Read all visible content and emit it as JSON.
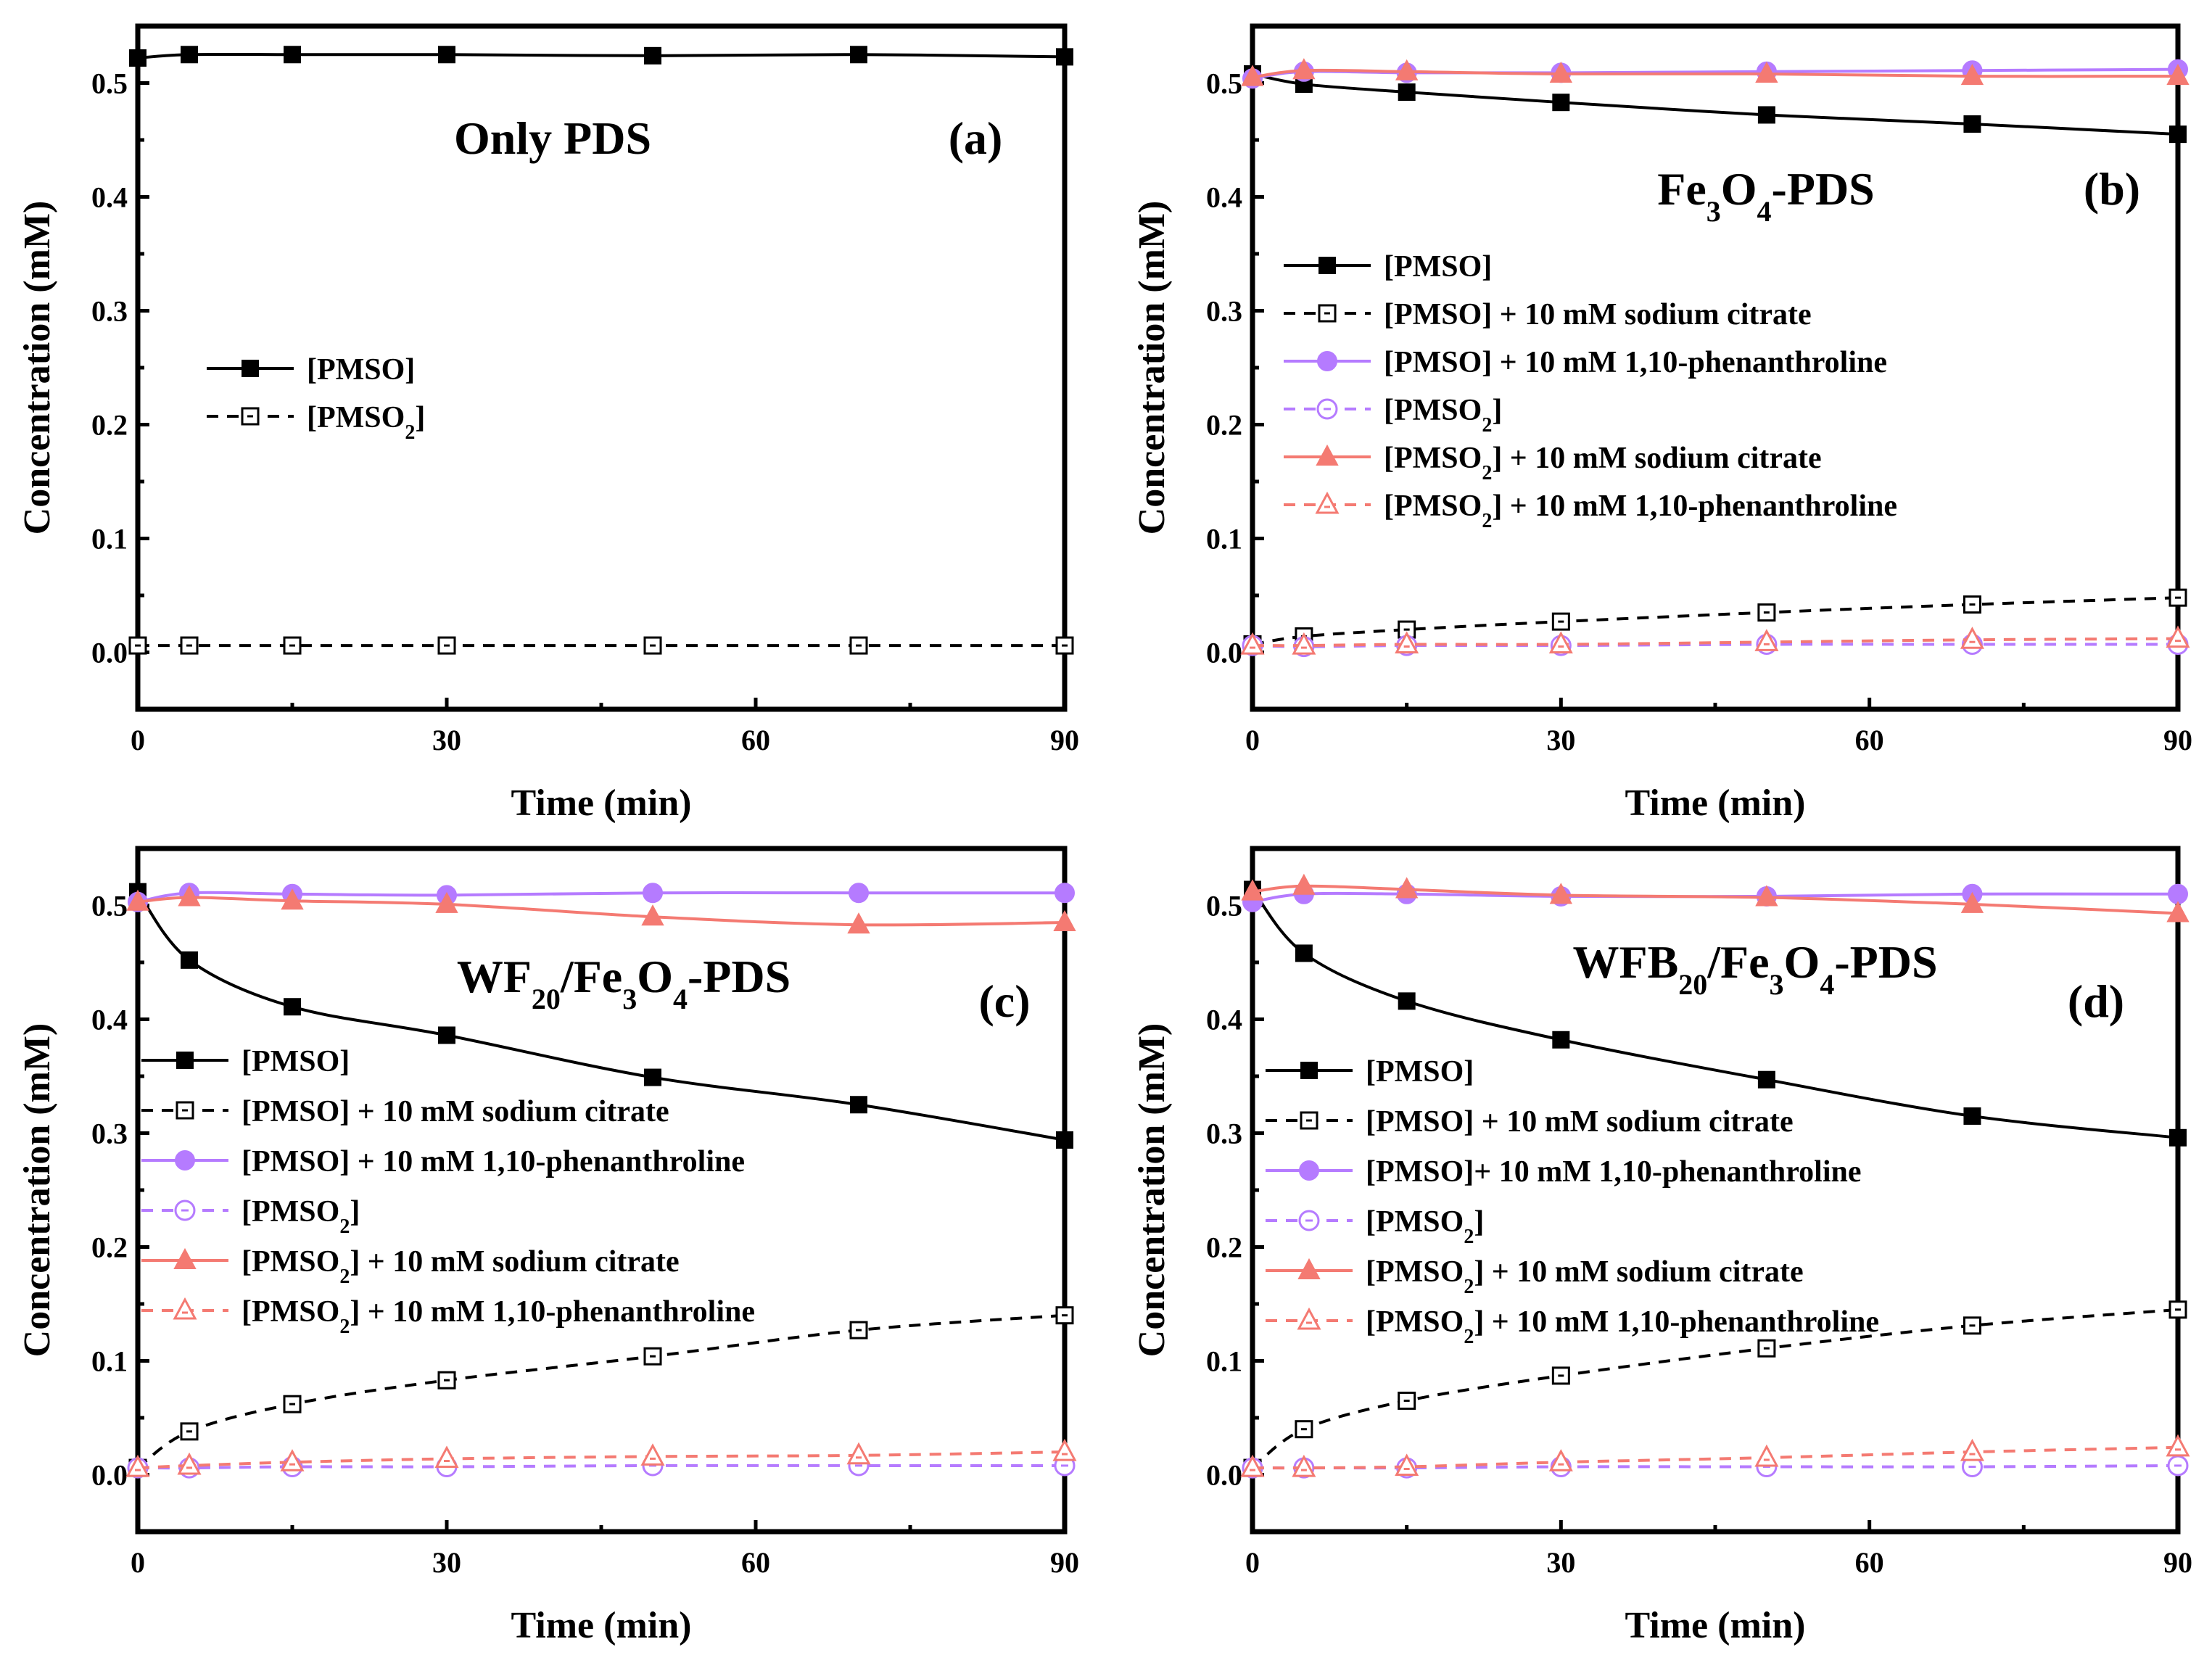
{
  "chart_data": [
    {
      "type": "line",
      "panel": "(a)",
      "title": "Only PDS",
      "xlabel": "Time (min)",
      "ylabel": "Concentration (mM)",
      "xlim": [
        0,
        90
      ],
      "ylim": [
        -0.05,
        0.55
      ],
      "xticks": [
        0,
        30,
        60,
        90
      ],
      "yticks": [
        0.0,
        0.1,
        0.2,
        0.3,
        0.4,
        0.5
      ],
      "x": [
        0,
        5,
        15,
        30,
        50,
        70,
        90
      ],
      "legend_position": "middle-left",
      "series": [
        {
          "key": "pmso",
          "name": "[PMSO]",
          "color": "#000000",
          "marker": "square-filled",
          "dash": "solid",
          "values": [
            0.522,
            0.525,
            0.525,
            0.525,
            0.524,
            0.525,
            0.523
          ]
        },
        {
          "key": "pmso2",
          "name": "[PMSO2]",
          "color": "#000000",
          "marker": "square-open",
          "dash": "dashed",
          "values": [
            0.006,
            0.006,
            0.006,
            0.006,
            0.006,
            0.006,
            0.006
          ]
        }
      ]
    },
    {
      "type": "line",
      "panel": "(b)",
      "title": "Fe3O4-PDS",
      "xlabel": "Time (min)",
      "ylabel": "Concentration (mM)",
      "xlim": [
        0,
        90
      ],
      "ylim": [
        -0.05,
        0.55
      ],
      "xticks": [
        0,
        30,
        60,
        90
      ],
      "yticks": [
        0.0,
        0.1,
        0.2,
        0.3,
        0.4,
        0.5
      ],
      "x": [
        0,
        5,
        15,
        30,
        50,
        70,
        90
      ],
      "legend_position": "center",
      "series": [
        {
          "key": "pmso",
          "name": "[PMSO]",
          "color": "#000000",
          "marker": "square-filled",
          "dash": "solid",
          "values": [
            0.508,
            0.499,
            0.492,
            0.483,
            0.472,
            0.464,
            0.455
          ]
        },
        {
          "key": "pmso_cit",
          "name": "[PMSO] + 10 mM  sodium citrate",
          "color": "#000000",
          "marker": "square-open",
          "dash": "dashed",
          "values": [
            0.007,
            0.014,
            0.02,
            0.027,
            0.035,
            0.042,
            0.048
          ]
        },
        {
          "key": "pmso_phen",
          "name": "[PMSO] + 10 mM   1,10-phenanthroline",
          "color": "#b57bff",
          "marker": "circle-filled",
          "dash": "solid",
          "values": [
            0.504,
            0.51,
            0.509,
            0.509,
            0.51,
            0.511,
            0.512
          ]
        },
        {
          "key": "pmso2",
          "name": "[PMSO2]",
          "color": "#b57bff",
          "marker": "circle-open",
          "dash": "dashed",
          "values": [
            0.006,
            0.005,
            0.006,
            0.006,
            0.007,
            0.007,
            0.007
          ]
        },
        {
          "key": "pmso2_cit",
          "name": "[PMSO2]  + 10 mM  sodium citrate",
          "color": "#f47a72",
          "marker": "triangle-filled",
          "dash": "solid",
          "values": [
            0.505,
            0.511,
            0.51,
            0.508,
            0.508,
            0.506,
            0.506
          ]
        },
        {
          "key": "pmso2_phen",
          "name": "[PMSO2] + 10 mM   1,10-phenanthroline",
          "color": "#f47a72",
          "marker": "triangle-open",
          "dash": "dashed",
          "values": [
            0.006,
            0.006,
            0.007,
            0.007,
            0.009,
            0.011,
            0.012
          ]
        }
      ]
    },
    {
      "type": "line",
      "panel": "(c)",
      "title": "WF20/Fe3O4-PDS",
      "xlabel": "Time (min)",
      "ylabel": "Concentration (mM)",
      "xlim": [
        0,
        90
      ],
      "ylim": [
        -0.05,
        0.55
      ],
      "xticks": [
        0,
        30,
        60,
        90
      ],
      "yticks": [
        0.0,
        0.1,
        0.2,
        0.3,
        0.4,
        0.5
      ],
      "x": [
        0,
        5,
        15,
        30,
        50,
        70,
        90
      ],
      "legend_position": "center-left",
      "series": [
        {
          "key": "pmso",
          "name": "[PMSO]",
          "color": "#000000",
          "marker": "square-filled",
          "dash": "solid",
          "values": [
            0.512,
            0.452,
            0.411,
            0.386,
            0.349,
            0.325,
            0.294
          ]
        },
        {
          "key": "pmso_cit",
          "name": "[PMSO] + 10 mM  sodium citrate",
          "color": "#000000",
          "marker": "square-open",
          "dash": "dashed",
          "values": [
            0.006,
            0.038,
            0.062,
            0.083,
            0.104,
            0.127,
            0.14
          ]
        },
        {
          "key": "pmso_phen",
          "name": "[PMSO] + 10 mM   1,10-phenanthroline",
          "color": "#b57bff",
          "marker": "circle-filled",
          "dash": "solid",
          "values": [
            0.503,
            0.511,
            0.51,
            0.509,
            0.511,
            0.511,
            0.511
          ]
        },
        {
          "key": "pmso2",
          "name": "[PMSO2]",
          "color": "#b57bff",
          "marker": "circle-open",
          "dash": "dashed",
          "values": [
            0.006,
            0.006,
            0.007,
            0.007,
            0.008,
            0.008,
            0.008
          ]
        },
        {
          "key": "pmso2_cit",
          "name": "[PMSO2]  + 10 mM  sodium citrate",
          "color": "#f47a72",
          "marker": "triangle-filled",
          "dash": "solid",
          "values": [
            0.503,
            0.507,
            0.504,
            0.501,
            0.49,
            0.483,
            0.485
          ]
        },
        {
          "key": "pmso2_phen",
          "name": "[PMSO2]  + 10 mM   1,10-phenanthroline",
          "color": "#f47a72",
          "marker": "triangle-open",
          "dash": "dashed",
          "values": [
            0.006,
            0.008,
            0.011,
            0.014,
            0.016,
            0.017,
            0.02
          ]
        }
      ]
    },
    {
      "type": "line",
      "panel": "(d)",
      "title": "WFB20/Fe3O4-PDS",
      "xlabel": "Time (min)",
      "ylabel": "Concentration (mM)",
      "xlim": [
        0,
        90
      ],
      "ylim": [
        -0.05,
        0.55
      ],
      "xticks": [
        0,
        30,
        60,
        90
      ],
      "yticks": [
        0.0,
        0.1,
        0.2,
        0.3,
        0.4,
        0.5
      ],
      "x": [
        0,
        5,
        15,
        30,
        50,
        70,
        90
      ],
      "legend_position": "center-left",
      "series": [
        {
          "key": "pmso",
          "name": "[PMSO]",
          "color": "#000000",
          "marker": "square-filled",
          "dash": "solid",
          "values": [
            0.514,
            0.458,
            0.416,
            0.382,
            0.347,
            0.315,
            0.296
          ]
        },
        {
          "key": "pmso_cit",
          "name": "[PMSO] + 10 mM  sodium citrate",
          "color": "#000000",
          "marker": "square-open",
          "dash": "dashed",
          "values": [
            0.006,
            0.04,
            0.065,
            0.087,
            0.111,
            0.131,
            0.145
          ]
        },
        {
          "key": "pmso_phen",
          "name": "[PMSO]+ 10 mM   1,10-phenanthroline",
          "color": "#b57bff",
          "marker": "circle-filled",
          "dash": "solid",
          "values": [
            0.503,
            0.51,
            0.51,
            0.508,
            0.508,
            0.51,
            0.51
          ]
        },
        {
          "key": "pmso2",
          "name": "[PMSO2]",
          "color": "#b57bff",
          "marker": "circle-open",
          "dash": "dashed",
          "values": [
            0.006,
            0.006,
            0.006,
            0.007,
            0.007,
            0.007,
            0.008
          ]
        },
        {
          "key": "pmso2_cit",
          "name": "[PMSO2] + 10 mM  sodium citrate",
          "color": "#f47a72",
          "marker": "triangle-filled",
          "dash": "solid",
          "values": [
            0.512,
            0.517,
            0.514,
            0.509,
            0.507,
            0.501,
            0.493
          ]
        },
        {
          "key": "pmso2_phen",
          "name": "[PMSO2]  + 10 mM   1,10-phenanthroline",
          "color": "#f47a72",
          "marker": "triangle-open",
          "dash": "dashed",
          "values": [
            0.006,
            0.006,
            0.007,
            0.011,
            0.015,
            0.02,
            0.024
          ]
        }
      ]
    }
  ]
}
